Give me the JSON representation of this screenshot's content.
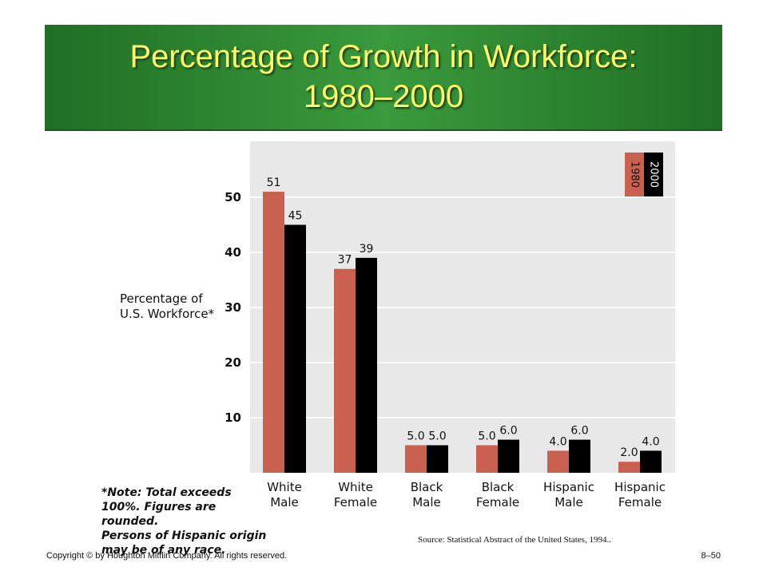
{
  "title": {
    "line1": "Percentage of Growth in Workforce:",
    "line2": "1980–2000"
  },
  "chart_data": {
    "type": "bar",
    "categories": [
      [
        "White",
        "Male"
      ],
      [
        "White",
        "Female"
      ],
      [
        "Black",
        "Male"
      ],
      [
        "Black",
        "Female"
      ],
      [
        "Hispanic",
        "Male"
      ],
      [
        "Hispanic",
        "Female"
      ]
    ],
    "series": [
      {
        "name": "1980",
        "values": [
          51,
          37,
          5.0,
          5.0,
          4.0,
          2.0
        ],
        "labels": [
          "51",
          "37",
          "5.0",
          "5.0",
          "4.0",
          "2.0"
        ],
        "color": "#c96050"
      },
      {
        "name": "2000",
        "values": [
          45,
          39,
          5.0,
          6.0,
          6.0,
          4.0
        ],
        "labels": [
          "45",
          "39",
          "5.0",
          "6.0",
          "6.0",
          "4.0"
        ],
        "color": "#000000"
      }
    ],
    "ylabel": [
      "Percentage of",
      "U.S. Workforce*"
    ],
    "yticks": [
      10,
      20,
      30,
      40,
      50
    ],
    "ylim": [
      0,
      60
    ],
    "grid": true,
    "legend": "top-right",
    "plot_background": "#e8e8e8"
  },
  "note": [
    "*Note: Total exceeds",
    "100%. Figures are rounded.",
    "Persons of Hispanic origin",
    "may be of any race."
  ],
  "source": "Source: Statistical Abstract of the United States, 1994..",
  "footer": {
    "copyright": "Copyright © by Houghton Mifflin Company. All rights reserved.",
    "page": "8–50"
  },
  "colors": {
    "banner": "#2e8a30",
    "title_text": "#ffff66"
  }
}
